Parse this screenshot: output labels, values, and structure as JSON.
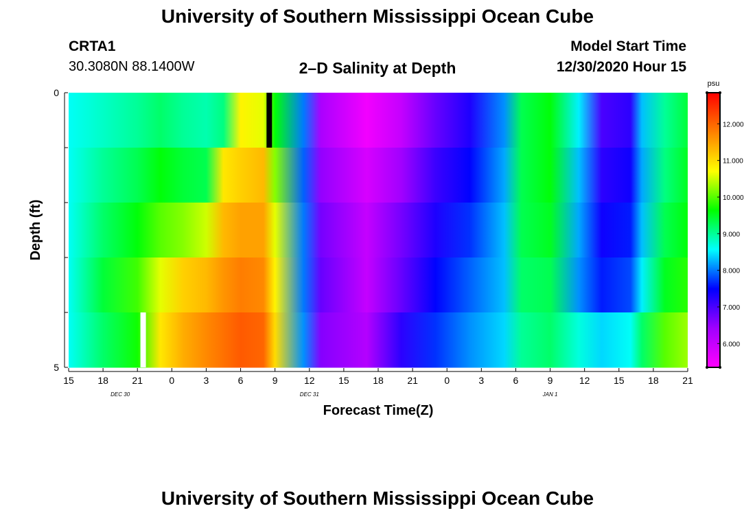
{
  "header": {
    "title": "University of Southern Mississippi Ocean Cube",
    "station": "CRTA1",
    "coords": "30.3080N 88.1400W",
    "plot_title": "2–D Salinity at Depth",
    "model_label": "Model Start Time",
    "model_time": "12/30/2020 Hour 15"
  },
  "footer": {
    "title": "University of Southern Mississippi Ocean Cube"
  },
  "chart_data": {
    "type": "heatmap",
    "title": "2–D Salinity at Depth",
    "xlabel": "Forecast Time(Z)",
    "ylabel": "Depth (ft)",
    "x_ticks": [
      "15",
      "18",
      "21",
      "0",
      "3",
      "6",
      "9",
      "12",
      "15",
      "18",
      "21",
      "0",
      "3",
      "6",
      "9",
      "12",
      "15",
      "18",
      "21"
    ],
    "x_day_labels": [
      {
        "label": "DEC 30",
        "tick_index": 1.5
      },
      {
        "label": "DEC 31",
        "tick_index": 7
      },
      {
        "label": "JAN 1",
        "tick_index": 14
      }
    ],
    "y_ticks": [
      "0",
      "5"
    ],
    "ylim": [
      0,
      5
    ],
    "x_hours_range": [
      0,
      54
    ],
    "depth_layers": 5,
    "colorbar": {
      "unit": "psu",
      "min": 5.35,
      "max": 12.85,
      "ticks": [
        "12.000",
        "11.000",
        "10.000",
        "9.000",
        "8.000",
        "7.000",
        "6.000"
      ],
      "tick_values": [
        12,
        11,
        10,
        9,
        8,
        7,
        6
      ]
    },
    "columns": [
      {
        "x": 0,
        "values": [
          8.6,
          8.6,
          8.6,
          8.6,
          8.6
        ]
      },
      {
        "x": 3,
        "values": [
          8.8,
          9.0,
          9.2,
          9.4,
          9.2
        ]
      },
      {
        "x": 6,
        "values": [
          9.0,
          9.3,
          9.6,
          9.9,
          9.7
        ]
      },
      {
        "x": 8,
        "values": [
          9.2,
          9.6,
          10.0,
          10.6,
          10.9
        ]
      },
      {
        "x": 10,
        "values": [
          9.0,
          9.4,
          10.2,
          11.1,
          11.4
        ]
      },
      {
        "x": 12,
        "values": [
          8.9,
          9.3,
          10.5,
          11.3,
          11.7
        ]
      },
      {
        "x": 13.5,
        "values": [
          9.1,
          10.9,
          11.3,
          11.6,
          11.9
        ]
      },
      {
        "x": 15,
        "values": [
          10.8,
          11.1,
          11.5,
          11.8,
          12.1
        ]
      },
      {
        "x": 17,
        "values": [
          10.6,
          11.3,
          11.5,
          11.7,
          12.0
        ]
      },
      {
        "x": 18,
        "values": [
          9.6,
          10.2,
          10.6,
          10.8,
          11.0
        ]
      },
      {
        "x": 20.5,
        "values": [
          8.0,
          7.9,
          8.0,
          8.0,
          8.1
        ]
      },
      {
        "x": 22,
        "values": [
          6.3,
          6.5,
          6.7,
          6.8,
          6.6
        ]
      },
      {
        "x": 26,
        "values": [
          5.5,
          5.8,
          6.0,
          6.0,
          6.2
        ]
      },
      {
        "x": 29,
        "values": [
          6.0,
          6.4,
          6.7,
          6.8,
          7.2
        ]
      },
      {
        "x": 32,
        "values": [
          6.8,
          7.1,
          7.3,
          7.5,
          7.7
        ]
      },
      {
        "x": 35,
        "values": [
          7.3,
          7.5,
          7.7,
          7.9,
          8.1
        ]
      },
      {
        "x": 38,
        "values": [
          8.1,
          8.2,
          8.3,
          8.3,
          8.4
        ]
      },
      {
        "x": 39.5,
        "values": [
          9.3,
          9.3,
          9.3,
          9.2,
          9.0
        ]
      },
      {
        "x": 42,
        "values": [
          9.6,
          9.6,
          9.5,
          9.3,
          9.2
        ]
      },
      {
        "x": 44.5,
        "values": [
          8.5,
          8.3,
          8.2,
          8.1,
          8.7
        ]
      },
      {
        "x": 46.5,
        "values": [
          7.0,
          7.2,
          7.4,
          7.6,
          8.4
        ]
      },
      {
        "x": 49,
        "values": [
          7.2,
          7.4,
          7.6,
          7.8,
          8.6
        ]
      },
      {
        "x": 50,
        "values": [
          8.3,
          8.2,
          8.3,
          8.5,
          9.2
        ]
      },
      {
        "x": 52,
        "values": [
          9.0,
          9.1,
          9.3,
          9.5,
          10.0
        ]
      },
      {
        "x": 54,
        "values": [
          9.4,
          9.5,
          9.6,
          9.8,
          10.3
        ]
      }
    ],
    "markers": [
      {
        "x": 17.5,
        "layer": 0,
        "color": "#000000"
      },
      {
        "x": 6.5,
        "layer": 4,
        "color": "#ffffff"
      }
    ],
    "colors": {
      "axis": "#000000",
      "scale": [
        "#ff00ff",
        "#a000ff",
        "#0000ff",
        "#00ffff",
        "#00ff00",
        "#ffff00",
        "#ff8000",
        "#ff0000"
      ]
    }
  }
}
